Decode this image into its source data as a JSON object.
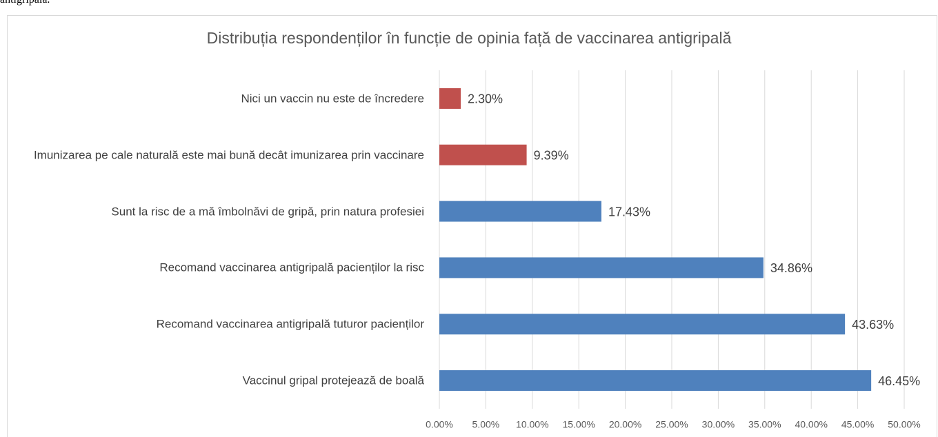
{
  "document_text": "antigripală.",
  "chart_data": {
    "type": "bar",
    "orientation": "horizontal",
    "title": "Distribuția respondenților în funcție de opinia față de vaccinarea antigripală",
    "categories": [
      "Nici un vaccin nu este de încredere",
      "Imunizarea pe cale naturală este mai bună decât imunizarea prin vaccinare",
      "Sunt la risc de a mă îmbolnăvi de gripă, prin natura profesiei",
      "Recomand vaccinarea antigripală pacienților la risc",
      "Recomand vaccinarea antigripală tuturor pacienților",
      "Vaccinul gripal protejează de boală"
    ],
    "values": [
      2.3,
      9.39,
      17.43,
      34.86,
      43.63,
      46.45
    ],
    "value_labels": [
      "2.30%",
      "9.39%",
      "17.43%",
      "34.86%",
      "43.63%",
      "46.45%"
    ],
    "colors": [
      "#c0504d",
      "#c0504d",
      "#4f81bd",
      "#4f81bd",
      "#4f81bd",
      "#4f81bd"
    ],
    "xlim": [
      0,
      50
    ],
    "xticks": [
      {
        "value": 0,
        "label": "0.00%"
      },
      {
        "value": 5,
        "label": "5.00%"
      },
      {
        "value": 10,
        "label": "10.00%"
      },
      {
        "value": 15,
        "label": "15.00%"
      },
      {
        "value": 20,
        "label": "20.00%"
      },
      {
        "value": 25,
        "label": "25.00%"
      },
      {
        "value": 30,
        "label": "30.00%"
      },
      {
        "value": 35,
        "label": "35.00%"
      },
      {
        "value": 40,
        "label": "40.00%"
      },
      {
        "value": 45,
        "label": "45.00%"
      },
      {
        "value": 50,
        "label": "50.00%"
      }
    ],
    "grid": true
  }
}
